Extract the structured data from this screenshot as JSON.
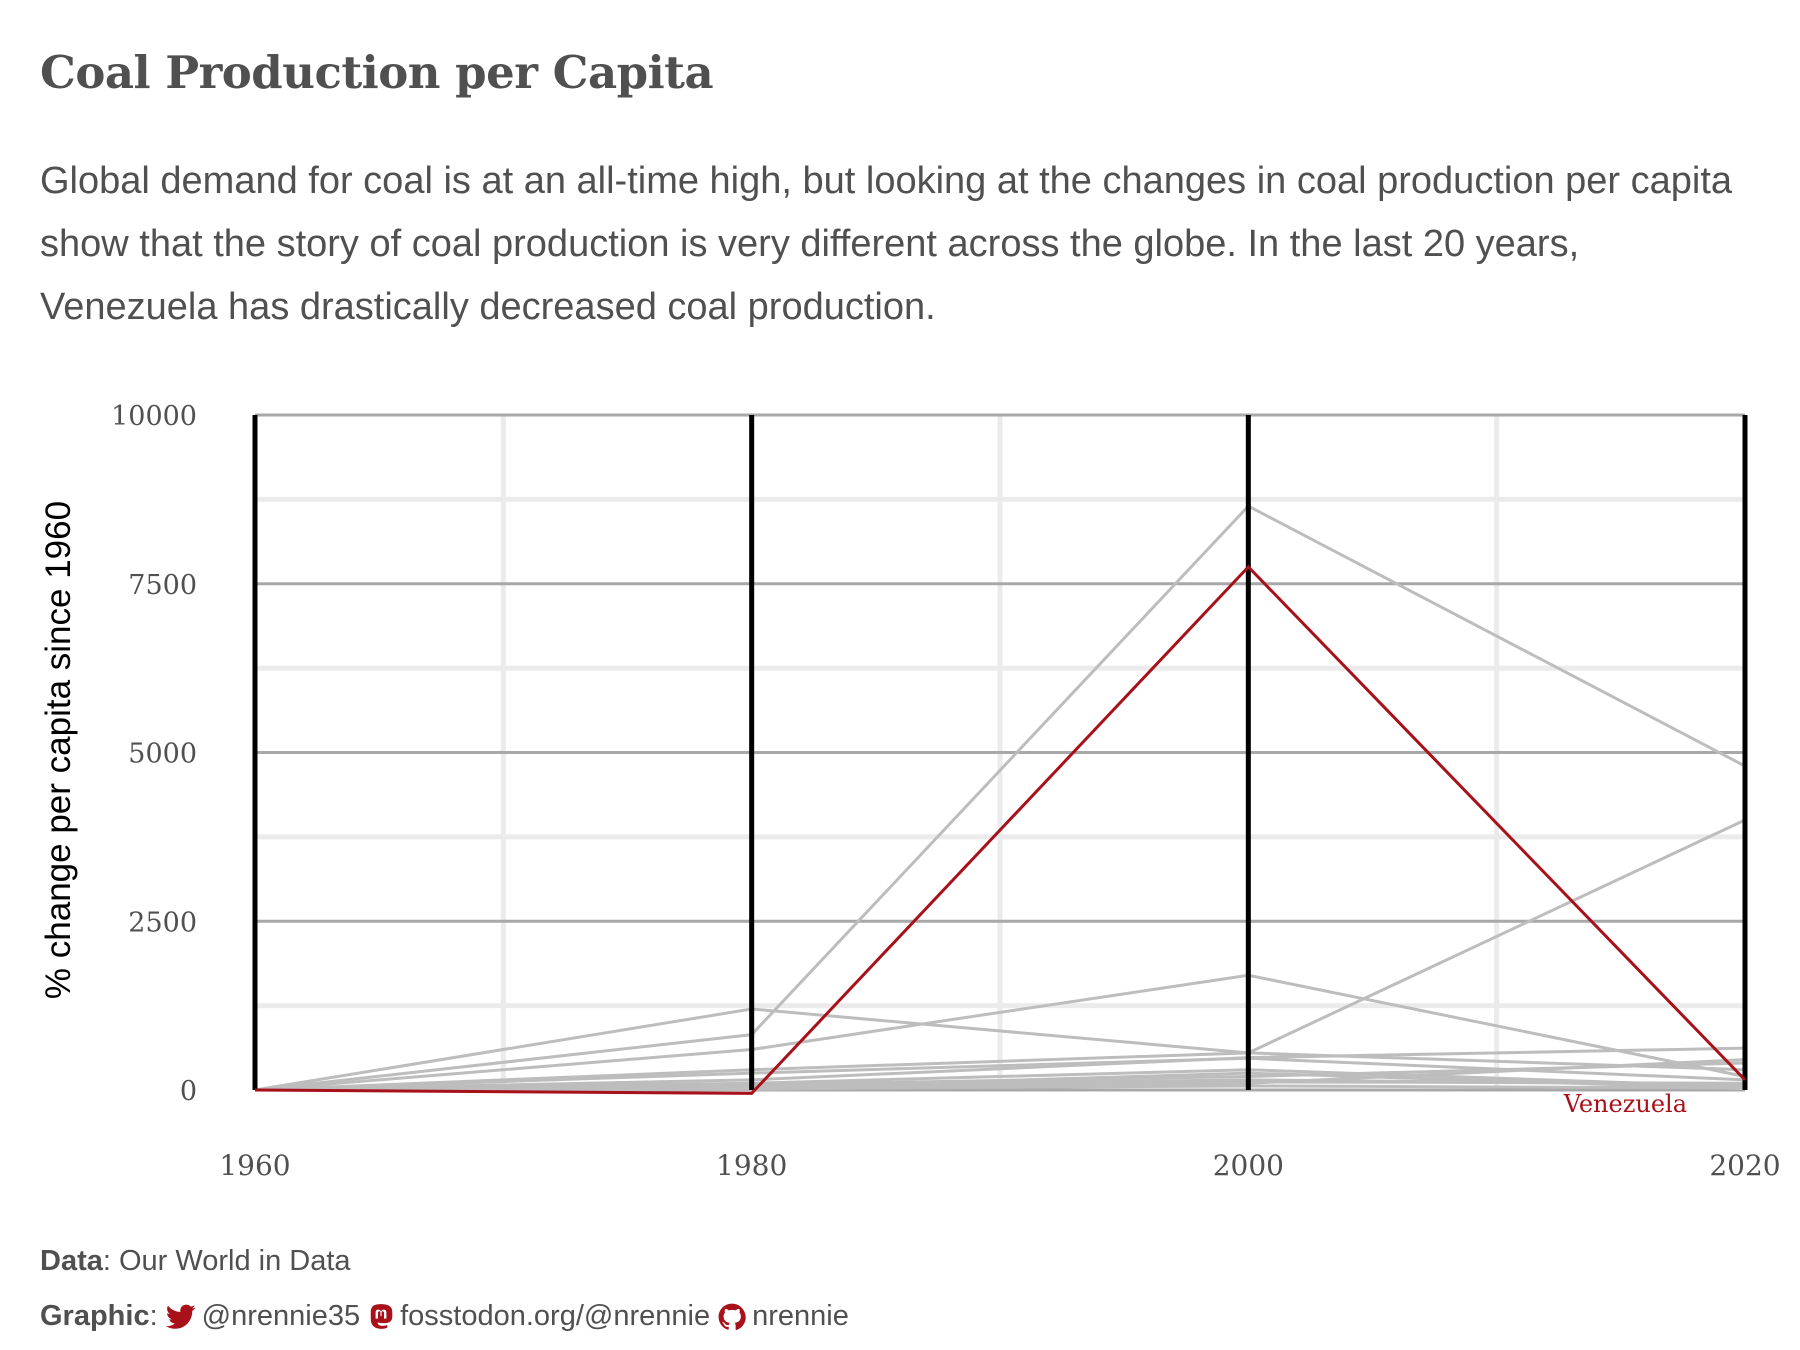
{
  "title": "Coal Production per Capita",
  "subtitle": "Global demand for coal is at an all-time high, but looking at the changes in coal production per capita show that the story of coal production is very different across the globe. In the last 20 years, Venezuela has drastically decreased coal production.",
  "colors": {
    "highlight": "#a8111a",
    "background_lines": "#bdbdbd",
    "axis_bars": "#000000",
    "text": "#505050"
  },
  "chart_data": {
    "type": "line",
    "ylabel": "% change per capita since 1960",
    "xlabel": "",
    "x": [
      1960,
      1980,
      2000,
      2020
    ],
    "x_tick_labels": [
      "1960",
      "1980",
      "2000",
      "2020"
    ],
    "ylim": [
      -100,
      10000
    ],
    "y_ticks": [
      0,
      2500,
      5000,
      7500,
      10000
    ],
    "y_tick_labels": [
      "0",
      "2500",
      "5000",
      "7500",
      "10000"
    ],
    "highlight": {
      "name": "Venezuela",
      "values": [
        0,
        -50,
        7750,
        150
      ]
    },
    "background_series": [
      {
        "values": [
          0,
          1200,
          550,
          300
        ]
      },
      {
        "values": [
          0,
          820,
          8650,
          4800
        ]
      },
      {
        "values": [
          0,
          600,
          1700,
          200
        ]
      },
      {
        "values": [
          0,
          300,
          550,
          4000
        ]
      },
      {
        "values": [
          0,
          150,
          480,
          620
        ]
      },
      {
        "values": [
          0,
          250,
          470,
          150
        ]
      },
      {
        "values": [
          0,
          100,
          300,
          50
        ]
      },
      {
        "values": [
          0,
          80,
          200,
          400
        ]
      },
      {
        "values": [
          0,
          60,
          150,
          80
        ]
      },
      {
        "values": [
          0,
          40,
          120,
          100
        ]
      },
      {
        "values": [
          0,
          20,
          60,
          30
        ]
      },
      {
        "values": [
          0,
          10,
          100,
          450
        ]
      },
      {
        "values": [
          0,
          30,
          250,
          20
        ]
      }
    ]
  },
  "caption": {
    "data_label": "Data",
    "data_source": ": Our World in Data",
    "graphic_label": "Graphic",
    "twitter_handle": "@nrennie35",
    "mastodon_handle": "fosstodon.org/@nrennie",
    "github_handle": "nrennie",
    "twitter_icon": "twitter-icon",
    "mastodon_icon": "mastodon-icon",
    "github_icon": "github-icon"
  }
}
